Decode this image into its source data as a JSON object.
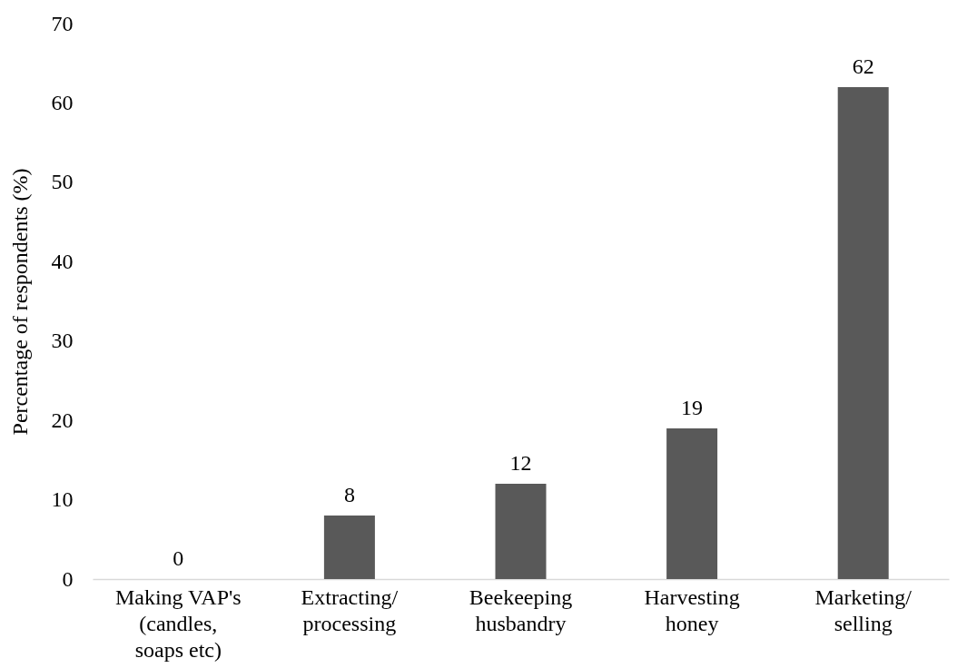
{
  "chart_data": {
    "type": "bar",
    "ylabel": "Percentage of respondents (%)",
    "categories": [
      "Making VAP's (candles, soaps etc)",
      "Extracting/ processing",
      "Beekeeping husbandry",
      "Harvesting honey",
      "Marketing/ selling"
    ],
    "values": [
      0,
      8,
      12,
      19,
      62
    ],
    "color": "#595959",
    "data_labels": true,
    "ylim": [
      0,
      70
    ],
    "yticks": [
      0,
      10,
      20,
      30,
      40,
      50,
      60,
      70
    ],
    "grid": false
  }
}
